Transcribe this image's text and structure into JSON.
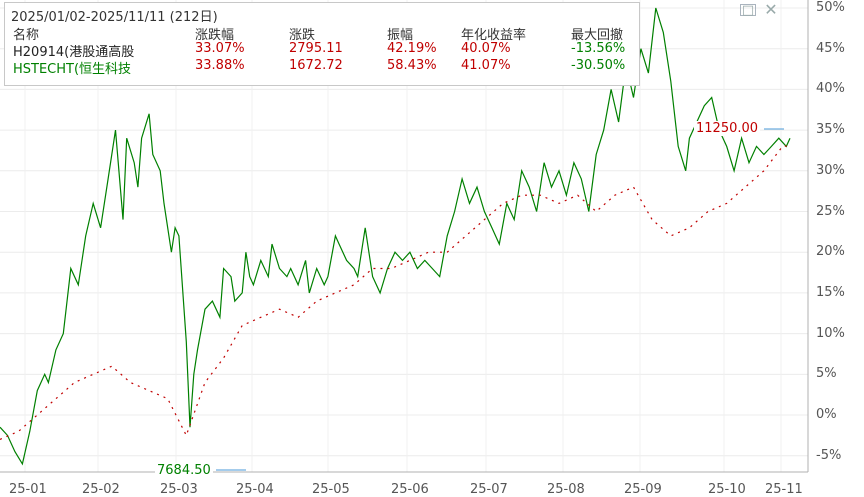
{
  "legend": {
    "title": "2025/01/02-2025/11/11 (212日)",
    "headers": [
      "名称",
      "涨跌幅",
      "涨跌",
      "振幅",
      "年化收益率",
      "最大回撤"
    ],
    "rows": [
      {
        "name": "H20914(港股通高股",
        "pct": "33.07%",
        "chg": "2795.11",
        "amp": "42.19%",
        "annual": "40.07%",
        "drawdown": "-13.56%",
        "color": "#c00000"
      },
      {
        "name": "HSTECHT(恒生科技",
        "pct": "33.88%",
        "chg": "1672.72",
        "amp": "58.43%",
        "annual": "41.07%",
        "drawdown": "-30.50%",
        "color": "#008000"
      }
    ]
  },
  "window_controls": {
    "maximize": "□",
    "close": "✕"
  },
  "price_tags": {
    "high": "11250.00",
    "low": "7684.50"
  },
  "chart_data": {
    "type": "line",
    "y_unit": "%",
    "ylim": [
      -7,
      50
    ],
    "y_ticks": [
      "50%",
      "45%",
      "40%",
      "35%",
      "30%",
      "25%",
      "20%",
      "15%",
      "10%",
      "5%",
      "0%",
      "-5%"
    ],
    "y_tick_values": [
      50,
      45,
      40,
      35,
      30,
      25,
      20,
      15,
      10,
      5,
      0,
      -5
    ],
    "x_labels": [
      "25-01",
      "25-02",
      "25-03",
      "25-04",
      "25-05",
      "25-06",
      "25-07",
      "25-08",
      "25-09",
      "25-10",
      "25-11"
    ],
    "grid": true,
    "series": [
      {
        "name": "HSTECHT(恒生科技",
        "color": "#008000",
        "style": "solid",
        "x": [
          0,
          2,
          4,
          6,
          8,
          10,
          12,
          13,
          15,
          17,
          19,
          21,
          23,
          25,
          27,
          29,
          31,
          33,
          34,
          36,
          37,
          38,
          40,
          41,
          43,
          44,
          46,
          47,
          48,
          50,
          51,
          52,
          53,
          55,
          57,
          59,
          60,
          62,
          63,
          65,
          66,
          67,
          68,
          70,
          72,
          73,
          75,
          77,
          78,
          80,
          82,
          83,
          85,
          87,
          88,
          90,
          91,
          93,
          95,
          96,
          98,
          100,
          102,
          104,
          106,
          108,
          110,
          112,
          114,
          116,
          118,
          120,
          122,
          124,
          126,
          128,
          130,
          132,
          134,
          136,
          138,
          140,
          142,
          144,
          146,
          148,
          150,
          152,
          154,
          156,
          158,
          160,
          162,
          164,
          166,
          168,
          170,
          172,
          174,
          176,
          178,
          180,
          182,
          184,
          185,
          187,
          189,
          191,
          193,
          195,
          197,
          199,
          201,
          203,
          205,
          207,
          209,
          211,
          212
        ],
        "values": [
          -1.5,
          -2.5,
          -4.5,
          -6,
          -2,
          3,
          5,
          4,
          8,
          10,
          18,
          16,
          22,
          26,
          23,
          29,
          35,
          24,
          34,
          31,
          28,
          34,
          37,
          32,
          30,
          26,
          20,
          23,
          22,
          9,
          -1.5,
          5,
          8,
          13,
          14,
          12,
          18,
          17,
          14,
          15,
          20,
          17,
          16,
          19,
          17,
          21,
          18,
          17,
          18,
          16,
          19,
          15,
          18,
          16,
          17,
          22,
          21,
          19,
          18,
          17,
          23,
          17,
          15,
          18,
          20,
          19,
          20,
          18,
          19,
          18,
          17,
          22,
          25,
          29,
          26,
          28,
          25,
          23,
          21,
          26,
          24,
          30,
          28,
          25,
          31,
          28,
          30,
          27,
          31,
          29,
          25,
          32,
          35,
          40,
          36,
          43,
          39,
          45,
          42,
          50,
          47,
          41,
          33,
          30,
          34,
          36,
          38,
          39,
          35,
          33,
          30,
          34,
          31,
          33,
          32,
          33,
          34,
          33,
          34
        ]
      },
      {
        "name": "H20914(港股通高股",
        "color": "#c00000",
        "style": "dotted",
        "x": [
          0,
          5,
          10,
          15,
          20,
          25,
          30,
          35,
          40,
          45,
          50,
          55,
          60,
          65,
          70,
          75,
          80,
          85,
          90,
          95,
          100,
          105,
          110,
          115,
          120,
          125,
          130,
          135,
          140,
          145,
          150,
          155,
          160,
          165,
          170,
          175,
          180,
          185,
          190,
          195,
          200,
          205,
          210,
          212
        ],
        "values": [
          -3,
          -2,
          0,
          2,
          4,
          5,
          6,
          4,
          3,
          2,
          -2.5,
          4,
          7,
          11,
          12,
          13,
          12,
          14,
          15,
          16,
          18,
          18,
          19,
          20,
          20,
          22,
          24,
          26,
          27,
          27,
          26,
          27,
          25,
          27,
          28,
          24,
          22,
          23,
          25,
          26,
          28,
          30,
          33,
          33.07
        ]
      }
    ]
  }
}
